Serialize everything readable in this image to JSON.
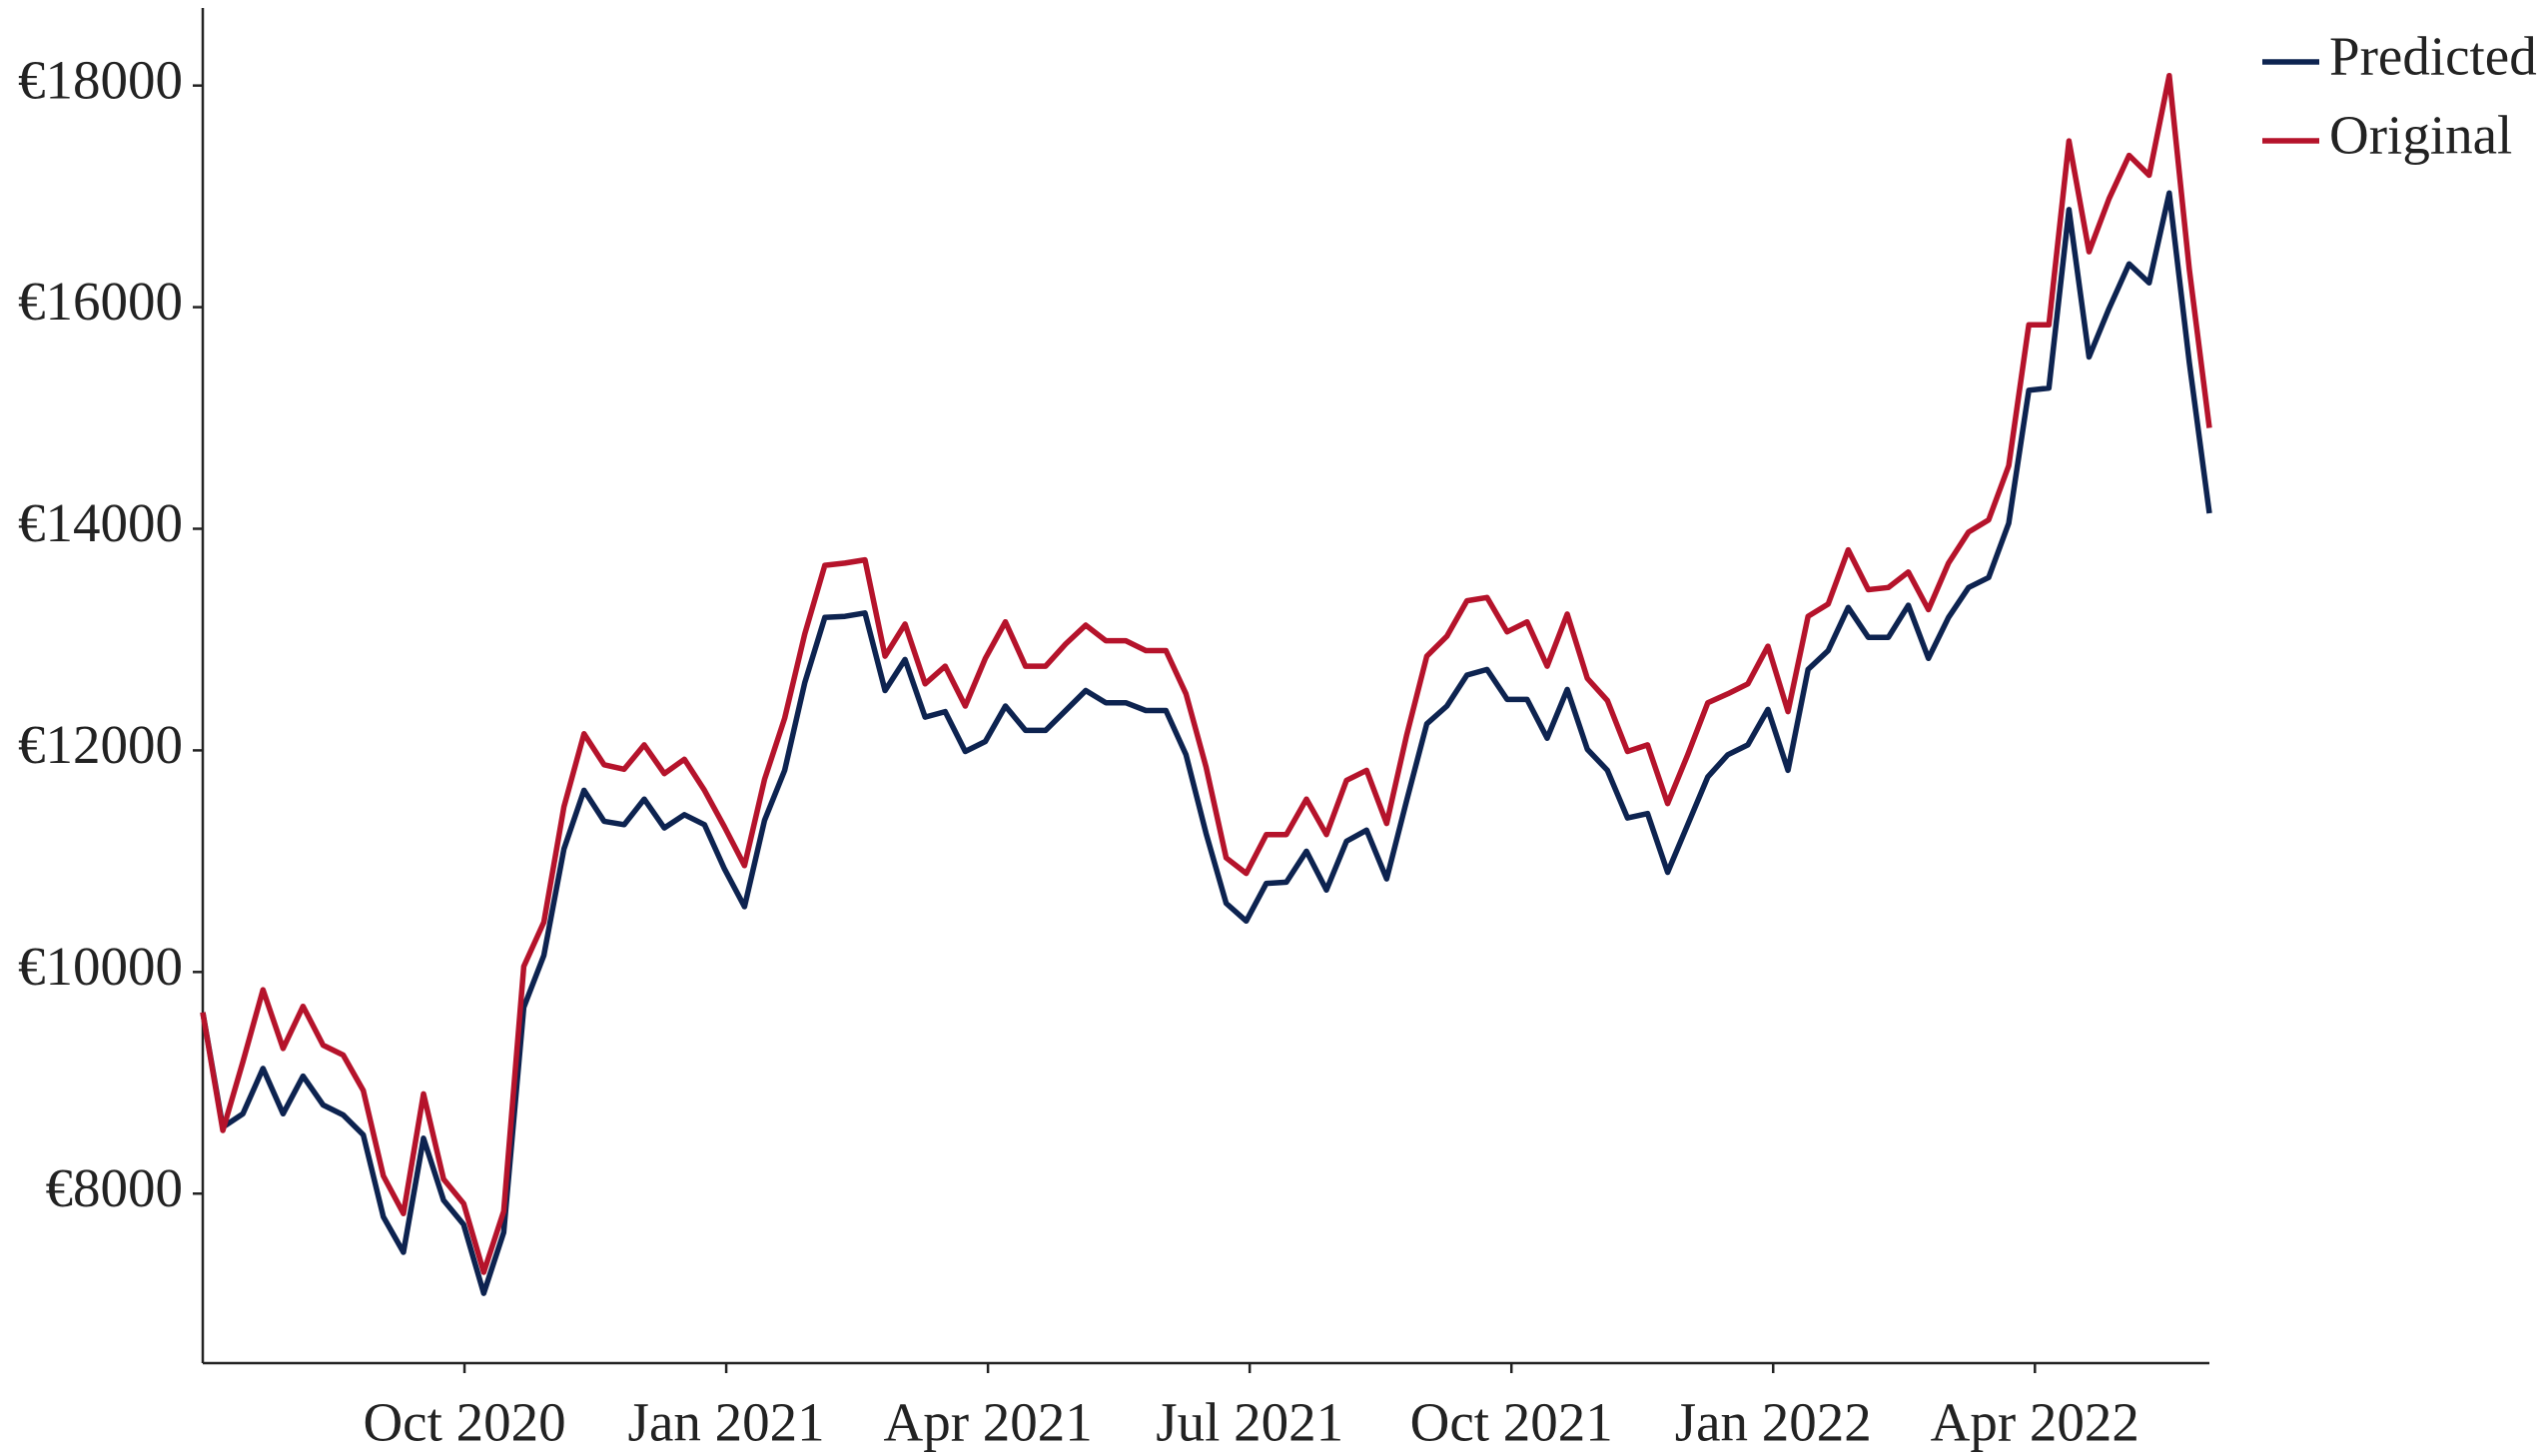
{
  "chart_data": {
    "type": "line",
    "series": [
      {
        "name": "Predicted",
        "color": "#0d2350",
        "values": [
          9635,
          8600,
          8720,
          9130,
          8720,
          9060,
          8800,
          8710,
          8530,
          7790,
          7470,
          8500,
          7940,
          7720,
          7100,
          7650,
          9680,
          10150,
          11110,
          11640,
          11360,
          11330,
          11560,
          11300,
          11420,
          11330,
          10930,
          10590,
          11370,
          11820,
          12610,
          13200,
          13210,
          13240,
          12540,
          12820,
          12300,
          12350,
          11990,
          12080,
          12400,
          12180,
          12180,
          12360,
          12540,
          12430,
          12430,
          12360,
          12360,
          11960,
          11250,
          10620,
          10460,
          10800,
          10810,
          11090,
          10740,
          11180,
          11280,
          10840,
          11550,
          12240,
          12400,
          12680,
          12730,
          12460,
          12460,
          12110,
          12550,
          12010,
          11820,
          11390,
          11430,
          10900,
          11330,
          11760,
          11960,
          12050,
          12370,
          11820,
          12730,
          12900,
          13290,
          13020,
          13020,
          13310,
          12830,
          13200,
          13470,
          13560,
          14050,
          15250,
          15270,
          16880,
          15550,
          15990,
          16390,
          16220,
          17030,
          15500,
          14140
        ]
      },
      {
        "name": "Original",
        "color": "#b5132b",
        "values": [
          9635,
          8570,
          9190,
          9840,
          9310,
          9690,
          9340,
          9250,
          8930,
          8160,
          7820,
          8900,
          8130,
          7910,
          7290,
          7840,
          10050,
          10450,
          11490,
          12150,
          11870,
          11830,
          12050,
          11790,
          11920,
          11640,
          11310,
          10960,
          11740,
          12290,
          13050,
          13670,
          13690,
          13720,
          12850,
          13140,
          12600,
          12760,
          12400,
          12830,
          13160,
          12760,
          12760,
          12960,
          13130,
          12990,
          12990,
          12900,
          12900,
          12510,
          11850,
          11030,
          10890,
          11240,
          11240,
          11560,
          11240,
          11730,
          11820,
          11340,
          12140,
          12850,
          13030,
          13350,
          13380,
          13070,
          13160,
          12760,
          13230,
          12650,
          12450,
          11990,
          12050,
          11520,
          11960,
          12430,
          12510,
          12600,
          12940,
          12350,
          13210,
          13320,
          13810,
          13450,
          13470,
          13610,
          13270,
          13690,
          13970,
          14080,
          14570,
          15840,
          15840,
          17500,
          16500,
          16980,
          17370,
          17190,
          18090,
          16340,
          14910
        ]
      }
    ],
    "xlim": [
      "2020-07",
      "2022-06"
    ],
    "xticks": [
      {
        "value": "2020-10",
        "label": "Oct 2020"
      },
      {
        "value": "2021-01",
        "label": "Jan 2021"
      },
      {
        "value": "2021-04",
        "label": "Apr 2021"
      },
      {
        "value": "2021-07",
        "label": "Jul 2021"
      },
      {
        "value": "2021-10",
        "label": "Oct 2021"
      },
      {
        "value": "2022-01",
        "label": "Jan 2022"
      },
      {
        "value": "2022-04",
        "label": "Apr 2022"
      }
    ],
    "ylim": [
      6470,
      18700
    ],
    "yticks": [
      {
        "value": 8000,
        "label": "€8000"
      },
      {
        "value": 10000,
        "label": "€10000"
      },
      {
        "value": 12000,
        "label": "€12000"
      },
      {
        "value": 14000,
        "label": "€14000"
      },
      {
        "value": 16000,
        "label": "€16000"
      },
      {
        "value": 18000,
        "label": "€18000"
      }
    ],
    "grid": false,
    "legend": "upper right"
  }
}
